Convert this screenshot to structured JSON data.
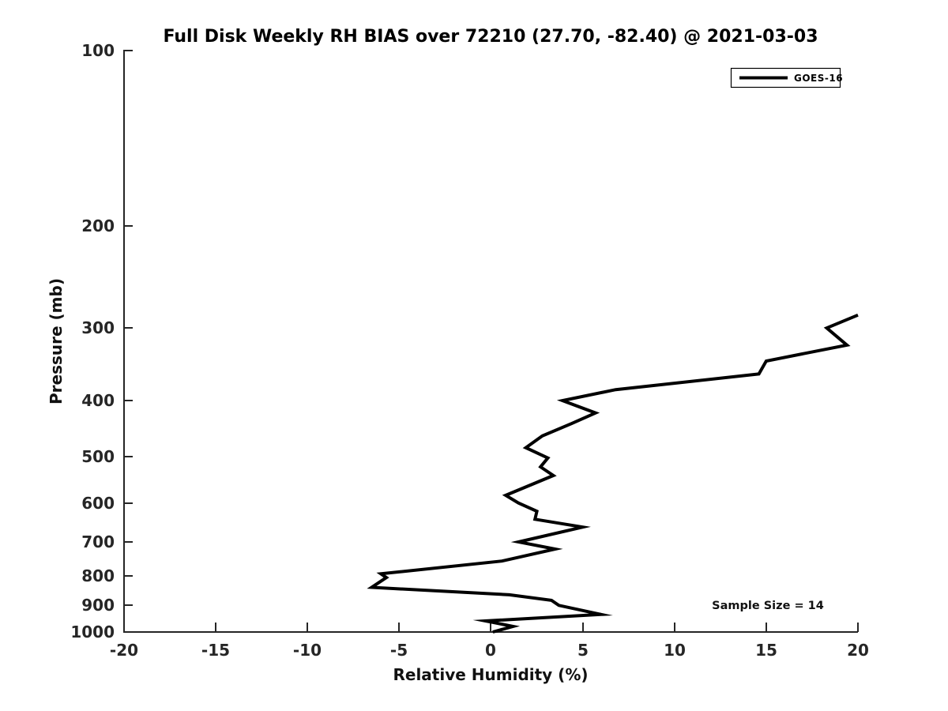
{
  "page": {
    "background": "#ffffff",
    "foreground": "#000000"
  },
  "chart_data": {
    "type": "line",
    "title": "Full Disk Weekly RH BIAS over 72210 (27.70, -82.40) @ 2021-03-03",
    "xlabel": "Relative Humidity (%)",
    "ylabel": "Pressure (mb)",
    "xlim": [
      -20,
      20
    ],
    "ylim": [
      100,
      1000
    ],
    "yscale": "log",
    "y_axis_inverted": true,
    "grid": false,
    "x_ticks": [
      -20,
      -15,
      -10,
      -5,
      0,
      5,
      10,
      15,
      20
    ],
    "y_ticks": [
      100,
      200,
      300,
      400,
      500,
      600,
      700,
      800,
      900,
      1000
    ],
    "legend": {
      "position": "top-right",
      "entries": [
        {
          "label": "GOES-16",
          "color": "#000000",
          "line_width": 4
        }
      ]
    },
    "annotation": {
      "text": "Sample Size = 14"
    },
    "series": [
      {
        "name": "GOES-16",
        "color": "#000000",
        "line_width": 4,
        "rh_bias_percent": [
          20.0,
          18.3,
          19.4,
          15.0,
          14.6,
          6.8,
          3.9,
          5.7,
          4.4,
          2.8,
          1.9,
          3.1,
          2.7,
          3.4,
          0.8,
          1.5,
          2.5,
          2.4,
          5.0,
          1.5,
          3.5,
          0.6,
          -6.0,
          -5.7,
          -6.5,
          1.0,
          3.3,
          3.7,
          6.0,
          -0.3,
          1.2,
          0.1
        ],
        "pressure_mb": [
          285,
          300,
          321,
          342,
          360,
          383,
          400,
          420,
          438,
          460,
          482,
          502,
          520,
          538,
          582,
          600,
          620,
          640,
          660,
          700,
          720,
          755,
          794,
          806,
          838,
          863,
          882,
          900,
          933,
          957,
          978,
          1000
        ]
      }
    ]
  }
}
